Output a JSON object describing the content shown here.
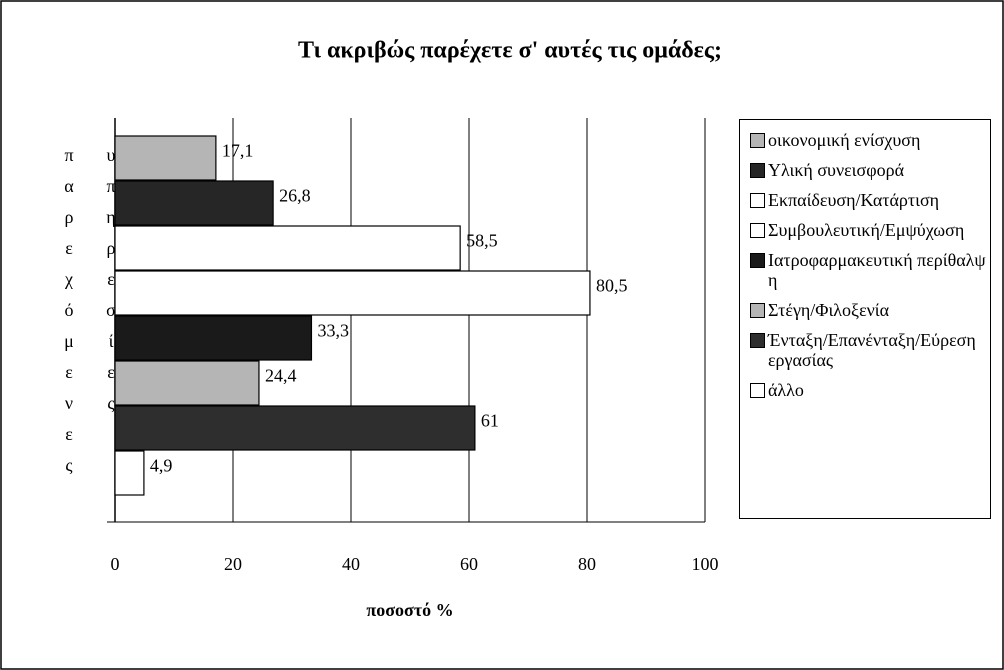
{
  "chart_data": {
    "type": "hbar",
    "title": "Τι ακριβώς παρέχετε σ' αυτές τις ομάδες;",
    "ylabel": "παρεχόμενες υπηρεσίες",
    "xlabel": "ποσοστό %",
    "categories": [
      "οικονομική ενίσχυση",
      "Υλική συνεισφορά",
      "Εκπαίδευση/Κατάρτιση",
      "Συμβουλευτική/Εμψύχωση",
      "Ιατροφαρμακευτική περίθαλψη",
      "Στέγη/Φιλοξενία",
      "Ένταξη/Επανένταξη/Εύρεση εργασίας",
      "άλλο"
    ],
    "values": [
      17.1,
      26.8,
      58.5,
      80.5,
      33.3,
      24.4,
      61,
      4.9
    ],
    "value_labels": [
      "17,1",
      "26,8",
      "58,5",
      "80,5",
      "33,3",
      "24,4",
      "61",
      "4,9"
    ],
    "colors": [
      "#b5b5b5",
      "#262626",
      "#ffffff",
      "#ffffff",
      "#1a1a1a",
      "#b5b5b5",
      "#2e2e2e",
      "#ffffff"
    ],
    "xlim": [
      0,
      100
    ],
    "xticks": [
      0,
      20,
      40,
      60,
      80,
      100
    ],
    "grid": true,
    "legend": "right"
  }
}
